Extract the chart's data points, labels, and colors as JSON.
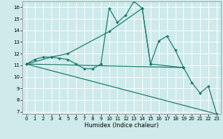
{
  "xlabel": "Humidex (Indice chaleur)",
  "xlim": [
    -0.5,
    23.5
  ],
  "ylim": [
    6.8,
    16.5
  ],
  "xticks": [
    0,
    1,
    2,
    3,
    4,
    5,
    6,
    7,
    8,
    9,
    10,
    11,
    12,
    13,
    14,
    15,
    16,
    17,
    18,
    19,
    20,
    21,
    22,
    23
  ],
  "yticks": [
    7,
    8,
    9,
    10,
    11,
    12,
    13,
    14,
    15,
    16
  ],
  "background_color": "#ceeaea",
  "line_color": "#1a7a6e",
  "grid_color": "#ffffff",
  "line_main": [
    [
      0,
      11.1
    ],
    [
      1,
      11.5
    ],
    [
      2,
      11.7
    ],
    [
      3,
      11.7
    ],
    [
      4,
      11.6
    ],
    [
      5,
      11.5
    ],
    [
      6,
      11.1
    ],
    [
      7,
      10.7
    ],
    [
      8,
      10.7
    ],
    [
      9,
      11.1
    ],
    [
      10,
      15.9
    ],
    [
      11,
      14.7
    ],
    [
      12,
      15.3
    ],
    [
      13,
      16.5
    ],
    [
      14,
      15.9
    ],
    [
      15,
      11.1
    ],
    [
      16,
      13.1
    ],
    [
      17,
      13.5
    ],
    [
      18,
      12.3
    ],
    [
      19,
      10.8
    ],
    [
      20,
      9.5
    ],
    [
      21,
      8.6
    ],
    [
      22,
      9.2
    ],
    [
      23,
      6.8
    ]
  ],
  "line_flat": [
    [
      0,
      11.1
    ],
    [
      19,
      10.8
    ]
  ],
  "line_decline": [
    [
      0,
      11.1
    ],
    [
      23,
      6.8
    ]
  ],
  "line_envelope": [
    [
      0,
      11.1
    ],
    [
      3,
      11.7
    ],
    [
      5,
      12.0
    ],
    [
      10,
      13.9
    ],
    [
      14,
      15.9
    ],
    [
      15,
      11.1
    ],
    [
      19,
      10.8
    ]
  ]
}
